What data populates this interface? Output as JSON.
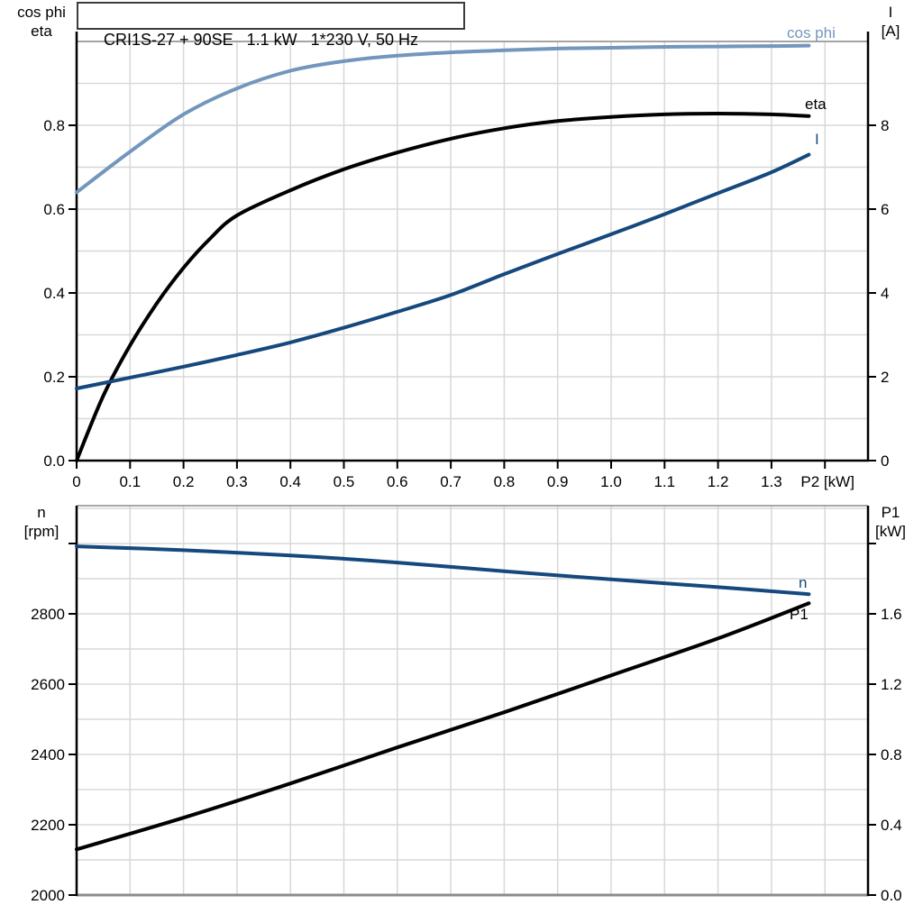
{
  "title": "CRI1S-27 + 90SE   1.1 kW   1*230 V, 50 Hz",
  "colors": {
    "black": "#000000",
    "dark_blue": "#15497D",
    "light_blue": "#7396BD",
    "grid": "#D8D8D8",
    "frame_gray": "#8C8C8C"
  },
  "corner_labels": {
    "top_left": {
      "line1": "cos phi",
      "line2": "eta"
    },
    "top_right": {
      "line1": "I",
      "line2": "[A]"
    },
    "bottom_left": {
      "line1": "n",
      "line2": "[rpm]"
    },
    "bottom_right": {
      "line1": "P1",
      "line2": "[kW]"
    }
  },
  "chart_data": [
    {
      "id": "top",
      "type": "line",
      "title": "Motor efficiency, power factor and current vs shaft power",
      "xlabel": "P2 [kW]",
      "ylabel_left": "cos phi / eta",
      "ylabel_right": "I [A]",
      "x_range": [
        0,
        1.48
      ],
      "y_left_range": [
        0,
        1.0
      ],
      "y_right_range": [
        0,
        10
      ],
      "grid": true,
      "grid_x": [
        0.1,
        0.2,
        0.3,
        0.4,
        0.5,
        0.6,
        0.7,
        0.8,
        0.9,
        1.0,
        1.1,
        1.2,
        1.3,
        1.4
      ],
      "grid_y": [
        0.1,
        0.2,
        0.3,
        0.4,
        0.5,
        0.6,
        0.7,
        0.8,
        0.9,
        1.0
      ],
      "x_ticks": [
        {
          "v": 0,
          "label": "0"
        },
        {
          "v": 0.1,
          "label": "0.1"
        },
        {
          "v": 0.2,
          "label": "0.2"
        },
        {
          "v": 0.3,
          "label": "0.3"
        },
        {
          "v": 0.4,
          "label": "0.4"
        },
        {
          "v": 0.5,
          "label": "0.5"
        },
        {
          "v": 0.6,
          "label": "0.6"
        },
        {
          "v": 0.7,
          "label": "0.7"
        },
        {
          "v": 0.8,
          "label": "0.8"
        },
        {
          "v": 0.9,
          "label": "0.9"
        },
        {
          "v": 1.0,
          "label": "1.0"
        },
        {
          "v": 1.1,
          "label": "1.1"
        },
        {
          "v": 1.2,
          "label": "1.2"
        },
        {
          "v": 1.3,
          "label": "1.3"
        },
        {
          "v": 1.4,
          "label": ""
        }
      ],
      "x_axis_label": {
        "text": "P2 [kW]",
        "v": 1.405
      },
      "left_ticks": [
        {
          "v": 0,
          "label": "0.0"
        },
        {
          "v": 0.2,
          "label": "0.2"
        },
        {
          "v": 0.4,
          "label": "0.4"
        },
        {
          "v": 0.6,
          "label": "0.6"
        },
        {
          "v": 0.8,
          "label": "0.8"
        }
      ],
      "right_ticks": [
        {
          "v": 0,
          "label": "0"
        },
        {
          "v": 2,
          "label": "2"
        },
        {
          "v": 4,
          "label": "4"
        },
        {
          "v": 6,
          "label": "6"
        },
        {
          "v": 8,
          "label": "8"
        }
      ],
      "series": [
        {
          "name": "cos phi",
          "axis": "left",
          "color": "light_blue",
          "width": 4,
          "label": {
            "text": "cos phi",
            "x": 873,
            "y": 42,
            "color": "light_blue"
          },
          "points": [
            [
              0,
              0.64
            ],
            [
              0.1,
              0.737
            ],
            [
              0.2,
              0.826
            ],
            [
              0.3,
              0.888
            ],
            [
              0.4,
              0.93
            ],
            [
              0.5,
              0.953
            ],
            [
              0.6,
              0.966
            ],
            [
              0.7,
              0.974
            ],
            [
              0.8,
              0.979
            ],
            [
              0.9,
              0.983
            ],
            [
              1.0,
              0.985
            ],
            [
              1.1,
              0.987
            ],
            [
              1.2,
              0.988
            ],
            [
              1.3,
              0.989
            ],
            [
              1.37,
              0.99
            ]
          ]
        },
        {
          "name": "eta",
          "axis": "left",
          "color": "black",
          "width": 4,
          "label": {
            "text": "eta",
            "x": 893,
            "y": 121,
            "color": "black"
          },
          "points": [
            [
              0,
              0
            ],
            [
              0.05,
              0.155
            ],
            [
              0.1,
              0.275
            ],
            [
              0.15,
              0.375
            ],
            [
              0.2,
              0.46
            ],
            [
              0.25,
              0.53
            ],
            [
              0.3,
              0.585
            ],
            [
              0.4,
              0.645
            ],
            [
              0.5,
              0.695
            ],
            [
              0.6,
              0.735
            ],
            [
              0.7,
              0.768
            ],
            [
              0.8,
              0.793
            ],
            [
              0.9,
              0.81
            ],
            [
              1.0,
              0.82
            ],
            [
              1.1,
              0.826
            ],
            [
              1.2,
              0.828
            ],
            [
              1.3,
              0.826
            ],
            [
              1.37,
              0.822
            ]
          ]
        },
        {
          "name": "I",
          "axis": "right",
          "color": "dark_blue",
          "width": 4,
          "label": {
            "text": "I",
            "x": 904,
            "y": 160,
            "color": "dark_blue"
          },
          "points": [
            [
              0,
              1.72
            ],
            [
              0.1,
              1.98
            ],
            [
              0.2,
              2.24
            ],
            [
              0.3,
              2.52
            ],
            [
              0.4,
              2.82
            ],
            [
              0.5,
              3.17
            ],
            [
              0.6,
              3.55
            ],
            [
              0.7,
              3.95
            ],
            [
              0.8,
              4.45
            ],
            [
              0.9,
              4.93
            ],
            [
              1.0,
              5.4
            ],
            [
              1.1,
              5.88
            ],
            [
              1.2,
              6.38
            ],
            [
              1.3,
              6.88
            ],
            [
              1.37,
              7.3
            ]
          ]
        }
      ]
    },
    {
      "id": "bottom",
      "type": "line",
      "title": "Motor speed and input power vs shaft power",
      "xlabel": "",
      "ylabel_left": "n [rpm]",
      "ylabel_right": "P1 [kW]",
      "x_range": [
        0,
        1.48
      ],
      "y_left_range": [
        2000,
        3108
      ],
      "y_right_range": [
        0,
        2.22
      ],
      "grid": true,
      "grid_x": [
        0.1,
        0.2,
        0.3,
        0.4,
        0.5,
        0.6,
        0.7,
        0.8,
        0.9,
        1.0,
        1.1,
        1.2,
        1.3,
        1.4
      ],
      "grid_y": [
        2100,
        2200,
        2300,
        2400,
        2500,
        2600,
        2700,
        2800,
        2900,
        3000,
        3100
      ],
      "x_ticks": [],
      "x_axis_label": null,
      "left_ticks": [
        {
          "v": 2000,
          "label": "2000"
        },
        {
          "v": 2200,
          "label": "2200"
        },
        {
          "v": 2400,
          "label": "2400"
        },
        {
          "v": 2600,
          "label": "2600"
        },
        {
          "v": 2800,
          "label": "2800"
        },
        {
          "v": 3000,
          "label": ""
        }
      ],
      "right_ticks": [
        {
          "v": 0,
          "label": "0.0"
        },
        {
          "v": 0.4,
          "label": "0.4"
        },
        {
          "v": 0.8,
          "label": "0.8"
        },
        {
          "v": 1.2,
          "label": "1.2"
        },
        {
          "v": 1.6,
          "label": "1.6"
        },
        {
          "v": 2.0,
          "label": ""
        }
      ],
      "series": [
        {
          "name": "n",
          "axis": "left",
          "color": "dark_blue",
          "width": 4,
          "label": {
            "text": "n",
            "x": 886,
            "y": 652,
            "color": "dark_blue"
          },
          "points": [
            [
              0,
              2992
            ],
            [
              0.2,
              2981
            ],
            [
              0.4,
              2966
            ],
            [
              0.6,
              2946
            ],
            [
              0.8,
              2921
            ],
            [
              1.0,
              2898
            ],
            [
              1.2,
              2876
            ],
            [
              1.37,
              2856
            ]
          ]
        },
        {
          "name": "P1",
          "axis": "right",
          "color": "black",
          "width": 4,
          "label": {
            "text": "P1",
            "x": 876,
            "y": 687,
            "color": "black"
          },
          "points": [
            [
              0,
              0.26
            ],
            [
              0.2,
              0.44
            ],
            [
              0.4,
              0.635
            ],
            [
              0.6,
              0.84
            ],
            [
              0.8,
              1.04
            ],
            [
              1.0,
              1.25
            ],
            [
              1.2,
              1.46
            ],
            [
              1.37,
              1.66
            ]
          ]
        }
      ]
    }
  ]
}
